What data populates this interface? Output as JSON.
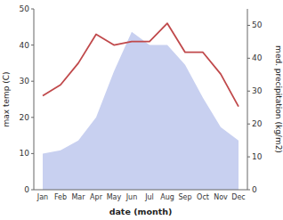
{
  "chart_data": {
    "type": "line",
    "categories": [
      "Jan",
      "Feb",
      "Mar",
      "Apr",
      "May",
      "Jun",
      "Jul",
      "Aug",
      "Sep",
      "Oct",
      "Nov",
      "Dec"
    ],
    "series": [
      {
        "type": "area",
        "color": "#c8d0f0",
        "axis": "y2",
        "values": [
          11,
          12,
          15,
          22,
          36,
          48,
          44,
          44,
          38,
          28,
          19,
          15
        ]
      },
      {
        "type": "line",
        "color": "#c0494b",
        "values": [
          26,
          29,
          35,
          43,
          40,
          41,
          41,
          46,
          38,
          38,
          32,
          23
        ]
      }
    ],
    "xlabel": "date (month)",
    "ylabel": "max temp (C)",
    "y2label": "med. precipitation (kg/m2)",
    "ylim": [
      0,
      50
    ],
    "yticks": [
      0,
      10,
      20,
      30,
      40,
      50
    ],
    "y2lim": [
      0,
      55
    ],
    "y2ticks": [
      0,
      10,
      20,
      30,
      40,
      50
    ],
    "grid": false
  }
}
